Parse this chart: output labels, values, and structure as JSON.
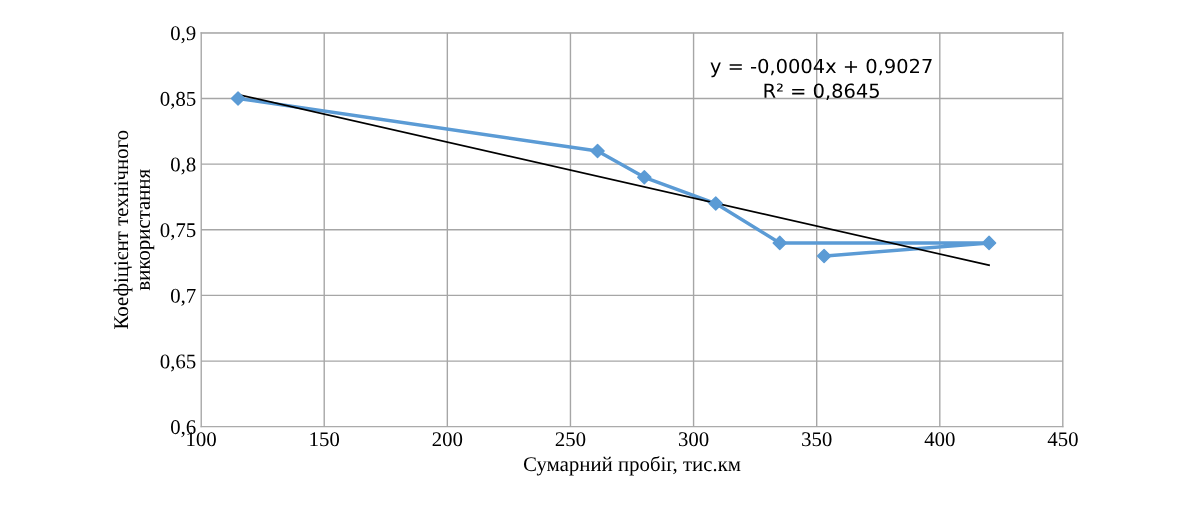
{
  "chart_data": {
    "type": "line",
    "xlabel": "Сумарний пробіг, тис.км",
    "ylabel": "Коефіцієнт технічного\nвикористання",
    "xlim": [
      100,
      450
    ],
    "xticks": [
      100,
      150,
      200,
      250,
      300,
      350,
      400,
      450
    ],
    "ylim": [
      0.6,
      0.9
    ],
    "yticks": [
      {
        "value": 0.6,
        "label": "0,6"
      },
      {
        "value": 0.65,
        "label": "0,65"
      },
      {
        "value": 0.7,
        "label": "0,7"
      },
      {
        "value": 0.75,
        "label": "0,75"
      },
      {
        "value": 0.8,
        "label": "0,8"
      },
      {
        "value": 0.85,
        "label": "0,85"
      },
      {
        "value": 0.9,
        "label": "0,9"
      }
    ],
    "grid": true,
    "series": [
      {
        "color": "#5b9bd5",
        "marker": "diamond",
        "x": [
          115,
          261,
          280,
          309,
          335,
          420,
          353
        ],
        "values": [
          0.85,
          0.81,
          0.79,
          0.77,
          0.74,
          0.74,
          0.73
        ]
      },
      {
        "color": "#000000",
        "marker": "none",
        "x": [
          115,
          420
        ],
        "values": [
          0.853,
          0.723
        ]
      }
    ],
    "annotations": [
      "y = -0,0004x + 0,9027\nR² = 0,8645"
    ]
  }
}
